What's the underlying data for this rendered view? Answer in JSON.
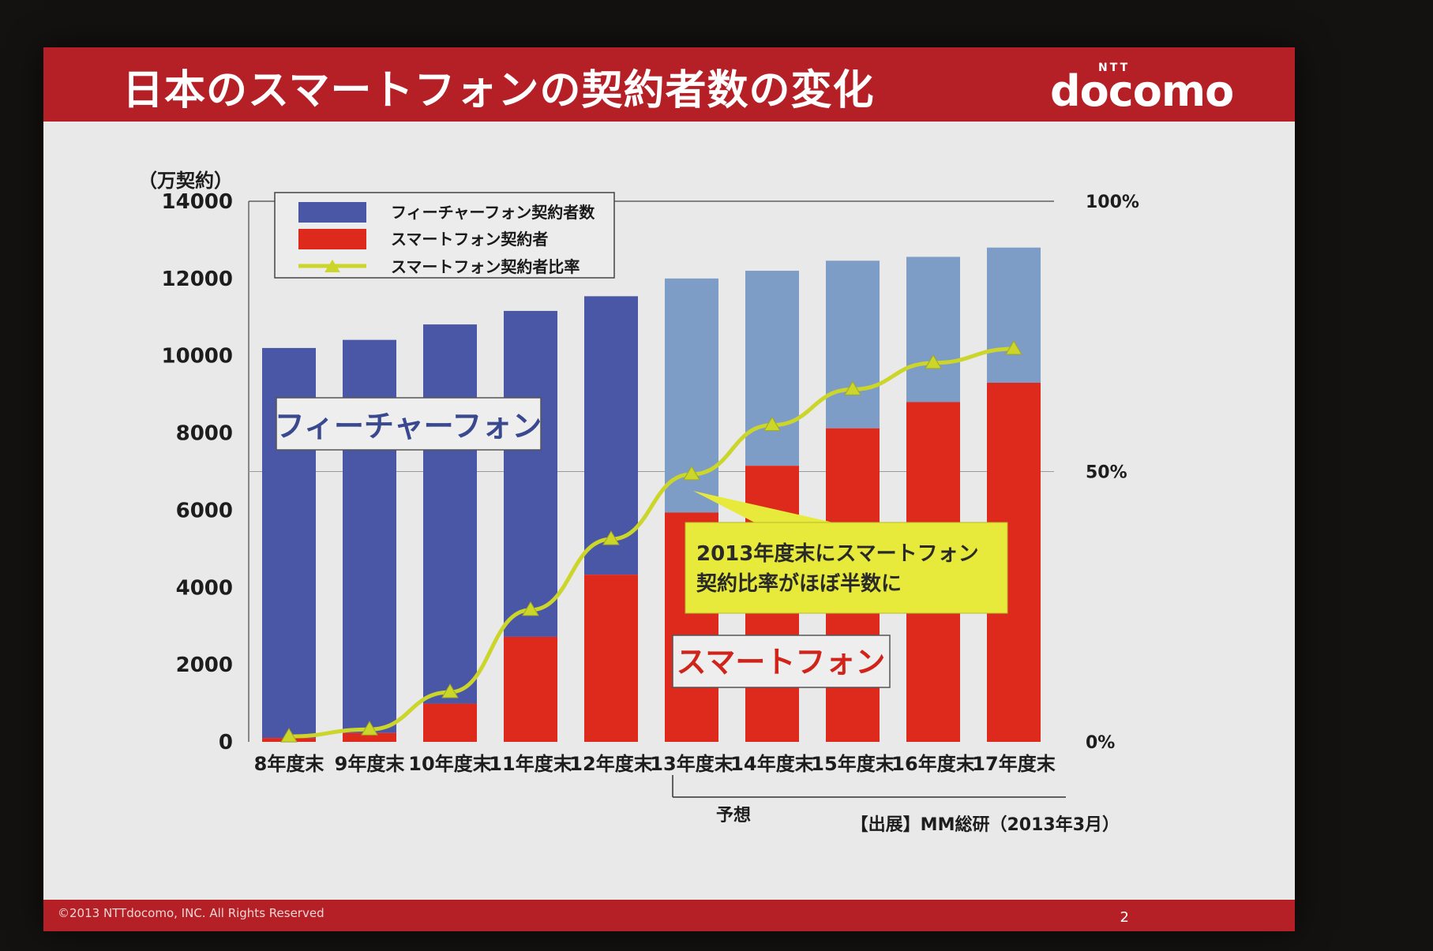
{
  "slide": {
    "title": "日本のスマートフォンの契約者数の変化",
    "brand_small": "NTT",
    "brand": "docomo",
    "copyright": "©2013 NTTdocomo, INC. All Rights Reserved",
    "page_number": "2",
    "source": "【出展】MM総研（2013年3月）",
    "forecast_label": "予想",
    "callout": [
      "2013年度末にスマートフォン",
      "契約比率がほぼ半数に"
    ],
    "label_feature": "フィーチャーフォン",
    "label_smart": "スマートフォン"
  },
  "colors": {
    "feature_actual": "#4a56a6",
    "feature_forecast": "#7e9dc6",
    "smartphone": "#dd2a1c",
    "ratio_line": "#cbd52a",
    "title_bar": "#b51f26",
    "callout_bg": "#e7ea3a"
  },
  "chart_data": {
    "type": "bar",
    "stacked": true,
    "y_unit_label": "（万契約）",
    "ylim": [
      0,
      14000
    ],
    "y_ticks": [
      0,
      2000,
      4000,
      6000,
      8000,
      10000,
      12000,
      14000
    ],
    "y2_ticks": [
      "0%",
      "50%",
      "100%"
    ],
    "y2lim": [
      0,
      100
    ],
    "categories": [
      "8年度末",
      "9年度末",
      "10年度末",
      "11年度末",
      "12年度末",
      "13年度末",
      "14年度末",
      "15年度末",
      "16年度末",
      "17年度末"
    ],
    "forecast_from_index": 5,
    "legend": [
      "フィーチャーフォン契約者数",
      "スマートフォン契約者",
      "スマートフォン契約者比率"
    ],
    "series": [
      {
        "name": "スマートフォン契約者",
        "values": [
          100,
          230,
          990,
          2720,
          4330,
          5940,
          7150,
          8120,
          8800,
          9300
        ]
      },
      {
        "name": "フィーチャーフォン契約者数",
        "values": [
          10100,
          10180,
          9820,
          8440,
          7210,
          6060,
          5050,
          4340,
          3760,
          3500
        ]
      }
    ],
    "ratio_series": {
      "name": "スマートフォン契約者比率",
      "values": [
        1,
        2.3,
        9.2,
        24.4,
        37.5,
        49.5,
        58.6,
        65.2,
        70.1,
        72.7
      ]
    }
  }
}
